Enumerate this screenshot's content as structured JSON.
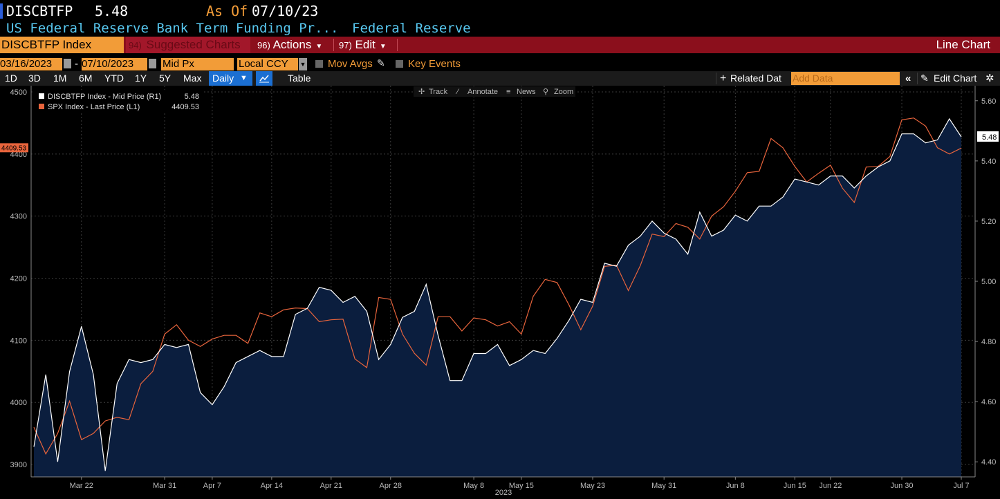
{
  "header": {
    "ticker": "DISCBTFP",
    "value": "5.48",
    "asof_label": "As Of",
    "asof_date": "07/10/23",
    "description": "US Federal Reserve Bank Term Funding Pr...",
    "source": "Federal Reserve"
  },
  "menubar": {
    "security": "DISCBTFP Index",
    "suggested_num": "94)",
    "suggested": "Suggested Charts",
    "actions_num": "96)",
    "actions": "Actions",
    "edit_num": "97)",
    "edit": "Edit",
    "chart_type": "Line Chart"
  },
  "controls": {
    "start_date": "03/16/2023",
    "end_date": "07/10/2023",
    "dash": "-",
    "field": "Mid Px",
    "currency": "Local CCY",
    "mov_avgs": "Mov Avgs",
    "key_events": "Key Events"
  },
  "range_bar": {
    "ranges": [
      "1D",
      "3D",
      "1M",
      "6M",
      "YTD",
      "1Y",
      "5Y",
      "Max"
    ],
    "frequency": "Daily",
    "table": "Table",
    "related": "Related Dat",
    "add_data_placeholder": "Add Data",
    "edit_chart": "Edit Chart"
  },
  "chart_tools": [
    "Track",
    "Annotate",
    "News",
    "Zoom"
  ],
  "colors": {
    "accent_orange": "#f29c38",
    "menu_red": "#8b0f1c",
    "series_white": "#ffffff",
    "series_orange": "#e8643c",
    "area_fill": "#0b1e3e",
    "label_cyan": "#58c8f0"
  },
  "chart_data": {
    "type": "line",
    "x_axis": {
      "tick_labels": [
        "Mar 22",
        "Mar 31",
        "Apr 7",
        "Apr 14",
        "Apr 21",
        "Apr 28",
        "May 8",
        "May 15",
        "May 23",
        "May 31",
        "Jun 8",
        "Jun 15",
        "Jun 22",
        "Jun 30",
        "Jul 7"
      ],
      "year_label": "2023",
      "start": "2023-03-16",
      "end": "2023-07-10"
    },
    "left_axis": {
      "ticks": [
        3900,
        4000,
        4100,
        4200,
        4300,
        4400,
        4500
      ],
      "ylim": [
        3880,
        4510
      ]
    },
    "right_axis": {
      "ticks": [
        "4.40",
        "4.60",
        "4.80",
        "5.00",
        "5.20",
        "5.40",
        "5.60"
      ],
      "ylim": [
        4.35,
        5.65
      ]
    },
    "last_value_labels": {
      "left": "4409.53",
      "right": "5.48"
    },
    "grid": true,
    "legend": "top-left",
    "series": [
      {
        "name": "DISCBTFP Index - Mid Price (R1)",
        "last": "5.48",
        "axis": "right",
        "color": "#ffffff",
        "fill": true,
        "values": [
          4.45,
          4.69,
          4.4,
          4.7,
          4.85,
          4.69,
          4.37,
          4.66,
          4.74,
          4.73,
          4.74,
          4.79,
          4.78,
          4.79,
          4.63,
          4.59,
          4.65,
          4.73,
          4.75,
          4.77,
          4.75,
          4.75,
          4.89,
          4.91,
          4.98,
          4.97,
          4.93,
          4.95,
          4.9,
          4.74,
          4.79,
          4.88,
          4.9,
          4.99,
          4.82,
          4.67,
          4.67,
          4.76,
          4.76,
          4.79,
          4.72,
          4.74,
          4.77,
          4.76,
          4.81,
          4.87,
          4.94,
          4.93,
          5.06,
          5.05,
          5.12,
          5.15,
          5.2,
          5.16,
          5.14,
          5.09,
          5.23,
          5.15,
          5.17,
          5.22,
          5.2,
          5.25,
          5.25,
          5.28,
          5.34,
          5.33,
          5.32,
          5.35,
          5.35,
          5.31,
          5.35,
          5.38,
          5.4,
          5.49,
          5.49,
          5.46,
          5.47,
          5.54,
          5.48
        ]
      },
      {
        "name": "SPX Index - Last Price (L1)",
        "last": "4409.53",
        "axis": "left",
        "color": "#e8643c",
        "fill": false,
        "values": [
          3960,
          3917,
          3950,
          4002,
          3940,
          3950,
          3970,
          3976,
          3972,
          4030,
          4050,
          4110,
          4125,
          4100,
          4090,
          4102,
          4108,
          4108,
          4095,
          4144,
          4138,
          4149,
          4152,
          4151,
          4130,
          4133,
          4134,
          4070,
          4056,
          4169,
          4166,
          4110,
          4079,
          4060,
          4138,
          4138,
          4115,
          4136,
          4133,
          4123,
          4130,
          4110,
          4171,
          4198,
          4193,
          4157,
          4117,
          4155,
          4219,
          4221,
          4180,
          4220,
          4271,
          4267,
          4288,
          4282,
          4263,
          4300,
          4315,
          4340,
          4370,
          4372,
          4425,
          4410,
          4380,
          4355,
          4369,
          4382,
          4345,
          4322,
          4379,
          4380,
          4396,
          4455,
          4458,
          4445,
          4410,
          4400,
          4409.53
        ]
      }
    ]
  }
}
